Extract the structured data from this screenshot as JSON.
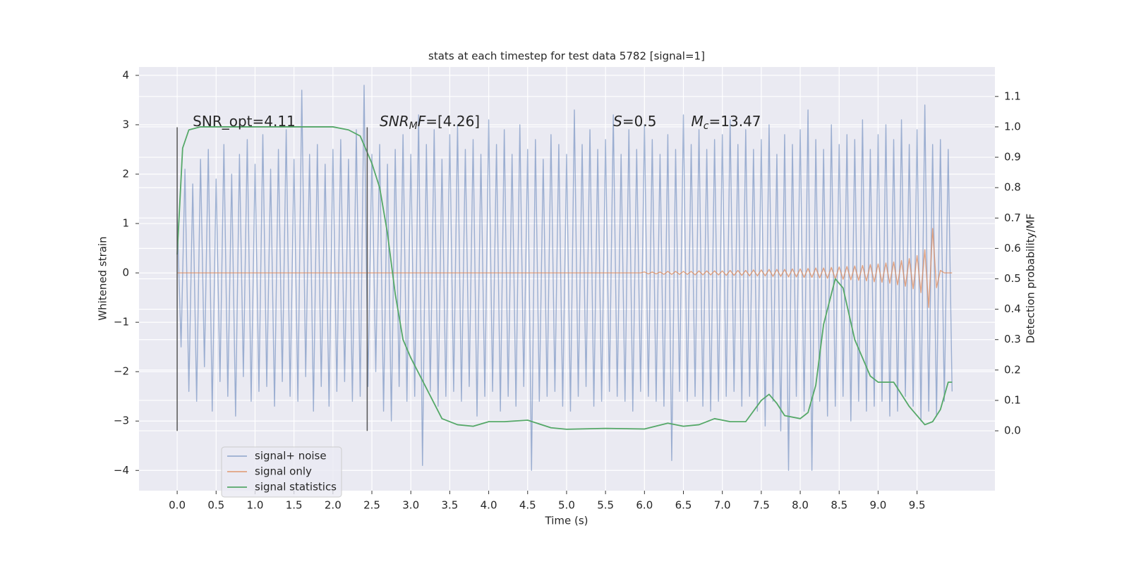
{
  "chart_data": {
    "type": "line",
    "title": "stats at each timestep for test data 5782 [signal=1]",
    "xlabel": "Time (s)",
    "ylabel": "Whitened strain",
    "y2label": "Detection probability/MF",
    "xlim": [
      -0.49,
      10.5
    ],
    "ylim": [
      -4.41,
      4.17
    ],
    "y2lim": [
      -0.197,
      1.197
    ],
    "xticks": [
      {
        "value": 0,
        "label": "0.0"
      },
      0.5,
      {
        "value": 1,
        "label": "1.0"
      },
      1.5,
      {
        "value": 2,
        "label": "2.0"
      },
      2.5,
      {
        "value": 3,
        "label": "3.0"
      },
      3.5,
      {
        "value": 4,
        "label": "4.0"
      },
      4.5,
      {
        "value": 5,
        "label": "5.0"
      },
      5.5,
      {
        "value": 6,
        "label": "6.0"
      },
      6.5,
      {
        "value": 7,
        "label": "7.0"
      },
      7.5,
      {
        "value": 8,
        "label": "8.0"
      },
      8.5,
      {
        "value": 9,
        "label": "9.0"
      },
      9.5
    ],
    "yticks": [
      {
        "value": -4,
        "label": "−4"
      },
      {
        "value": -3,
        "label": "−3"
      },
      {
        "value": -2,
        "label": "−2"
      },
      {
        "value": -1,
        "label": "−1"
      },
      0,
      1,
      2,
      3,
      4
    ],
    "y2ticks": [
      {
        "value": 0,
        "label": "0.0"
      },
      0.1,
      0.2,
      0.3,
      0.4,
      0.5,
      0.6,
      0.7,
      0.8,
      0.9,
      {
        "value": 1,
        "label": "1.0"
      },
      1.1
    ],
    "grid": true,
    "legend": "lower left",
    "vlines": {
      "x": [
        0,
        2.44
      ],
      "ymin": -3.2,
      "ymax": 2.95,
      "color": "#555555"
    },
    "annotations": [
      {
        "x": 0.2,
        "y": 3.0,
        "parts": [
          {
            "text": "SNR_opt=4.11"
          }
        ]
      },
      {
        "x": 2.6,
        "y": 3.0,
        "parts": [
          {
            "text": "SNR",
            "italic": true
          },
          {
            "text": "M",
            "italic": true,
            "sub": true
          },
          {
            "text": "F",
            "italic": true
          },
          {
            "text": "=[4.26]"
          }
        ]
      },
      {
        "x": 5.6,
        "y": 3.0,
        "parts": [
          {
            "text": "S",
            "italic": true
          },
          {
            "text": "=0.5"
          }
        ]
      },
      {
        "x": 6.6,
        "y": 3.0,
        "parts": [
          {
            "text": "M",
            "italic": true
          },
          {
            "text": "c",
            "italic": true,
            "sub": true
          },
          {
            "text": "=13.47"
          }
        ]
      }
    ],
    "series": [
      {
        "name": "signal+ noise",
        "color": "#4c72b0",
        "alpha": 0.5,
        "x": [
          0,
          0.05,
          0.1,
          0.15,
          0.2,
          0.25,
          0.3,
          0.35,
          0.4,
          0.45,
          0.5,
          0.55,
          0.6,
          0.65,
          0.7,
          0.75,
          0.8,
          0.85,
          0.9,
          0.95,
          1,
          1.05,
          1.1,
          1.15,
          1.2,
          1.25,
          1.3,
          1.35,
          1.4,
          1.45,
          1.5,
          1.55,
          1.6,
          1.65,
          1.7,
          1.75,
          1.8,
          1.85,
          1.9,
          1.95,
          2,
          2.05,
          2.1,
          2.15,
          2.2,
          2.25,
          2.3,
          2.35,
          2.4,
          2.45,
          2.5,
          2.55,
          2.6,
          2.65,
          2.7,
          2.75,
          2.8,
          2.85,
          2.9,
          2.95,
          3,
          3.05,
          3.1,
          3.15,
          3.2,
          3.25,
          3.3,
          3.35,
          3.4,
          3.45,
          3.5,
          3.55,
          3.6,
          3.65,
          3.7,
          3.75,
          3.8,
          3.85,
          3.9,
          3.95,
          4,
          4.05,
          4.1,
          4.15,
          4.2,
          4.25,
          4.3,
          4.35,
          4.4,
          4.45,
          4.5,
          4.55,
          4.6,
          4.65,
          4.7,
          4.75,
          4.8,
          4.85,
          4.9,
          4.95,
          5,
          5.05,
          5.1,
          5.15,
          5.2,
          5.25,
          5.3,
          5.35,
          5.4,
          5.45,
          5.5,
          5.55,
          5.6,
          5.65,
          5.7,
          5.75,
          5.8,
          5.85,
          5.9,
          5.95,
          6,
          6.05,
          6.1,
          6.15,
          6.2,
          6.25,
          6.3,
          6.35,
          6.4,
          6.45,
          6.5,
          6.55,
          6.6,
          6.65,
          6.7,
          6.75,
          6.8,
          6.85,
          6.9,
          6.95,
          7,
          7.05,
          7.1,
          7.15,
          7.2,
          7.25,
          7.3,
          7.35,
          7.4,
          7.45,
          7.5,
          7.55,
          7.6,
          7.65,
          7.7,
          7.75,
          7.8,
          7.85,
          7.9,
          7.95,
          8,
          8.05,
          8.1,
          8.15,
          8.2,
          8.25,
          8.3,
          8.35,
          8.4,
          8.45,
          8.5,
          8.55,
          8.6,
          8.65,
          8.7,
          8.75,
          8.8,
          8.85,
          8.9,
          8.95,
          9,
          9.05,
          9.1,
          9.15,
          9.2,
          9.25,
          9.3,
          9.35,
          9.4,
          9.45,
          9.5,
          9.55,
          9.6,
          9.65,
          9.7,
          9.75,
          9.8,
          9.85,
          9.9,
          9.95
        ],
        "values": [
          1.2,
          -1.5,
          2.1,
          -2.4,
          1.8,
          -2.6,
          2.3,
          -1.9,
          2.5,
          -2.8,
          1.9,
          -2.2,
          2.6,
          -2.5,
          2.0,
          -2.9,
          2.4,
          -2.1,
          2.7,
          -2.6,
          2.2,
          -2.4,
          2.8,
          -2.3,
          2.1,
          -2.7,
          2.5,
          -2.2,
          2.9,
          -2.5,
          2.3,
          -2.6,
          3.7,
          -2.1,
          2.4,
          -2.8,
          2.6,
          -2.3,
          2.2,
          -2.7,
          2.5,
          -2.4,
          2.7,
          -2.2,
          2.3,
          -2.6,
          2.9,
          -2.5,
          3.8,
          -2.3,
          2.4,
          -2.0,
          2.6,
          -2.8,
          2.2,
          -3.0,
          2.5,
          -2.3,
          2.8,
          -2.6,
          2.4,
          -2.5,
          3.2,
          -3.9,
          2.6,
          -2.4,
          2.9,
          -2.7,
          2.3,
          -2.5,
          2.8,
          -2.4,
          3.0,
          -2.6,
          2.5,
          -2.3,
          2.7,
          -2.9,
          2.4,
          -2.5,
          3.1,
          -2.4,
          2.6,
          -2.8,
          2.9,
          -2.5,
          2.4,
          -2.7,
          3.0,
          -2.3,
          2.5,
          -4.0,
          2.7,
          -2.6,
          2.3,
          -2.5,
          2.8,
          -2.4,
          2.6,
          -2.7,
          2.4,
          -2.8,
          3.3,
          -2.5,
          2.6,
          -2.3,
          2.9,
          -2.7,
          2.5,
          -2.6,
          2.7,
          -2.4,
          3.2,
          -2.5,
          2.4,
          -2.6,
          2.9,
          -2.8,
          2.5,
          -2.4,
          3.0,
          -2.5,
          2.7,
          -2.6,
          2.4,
          -2.7,
          2.8,
          -3.8,
          2.5,
          -2.4,
          3.2,
          -2.6,
          2.6,
          -2.5,
          2.9,
          -2.7,
          2.5,
          -2.8,
          2.7,
          -2.6,
          2.8,
          -2.5,
          3.1,
          -2.4,
          2.6,
          -2.7,
          2.9,
          -2.5,
          2.5,
          -2.8,
          2.7,
          -3.1,
          3.0,
          -2.6,
          2.4,
          -3.2,
          2.8,
          -4.0,
          2.6,
          -2.5,
          2.9,
          -2.8,
          3.3,
          -4.0,
          2.7,
          -2.6,
          2.5,
          -2.9,
          3.0,
          -2.7,
          2.6,
          -2.5,
          2.8,
          -3.0,
          2.7,
          -2.6,
          3.1,
          -2.8,
          2.5,
          -2.7,
          2.8,
          -2.6,
          3.0,
          -2.9,
          2.7,
          -2.8,
          3.1,
          -2.5,
          2.6,
          -2.7,
          2.9,
          -3.0,
          3.4,
          -2.8,
          2.6,
          -2.9,
          2.7,
          -2.6,
          2.5,
          -2.4
        ]
      },
      {
        "name": "signal only",
        "color": "#dd8452",
        "alpha": 0.7,
        "x": [
          0,
          0.05,
          0.1,
          0.15,
          0.2,
          0.25,
          0.3,
          0.35,
          0.4,
          0.45,
          0.5,
          0.55,
          0.6,
          0.65,
          0.7,
          0.75,
          0.8,
          0.85,
          0.9,
          0.95,
          1,
          1.05,
          1.1,
          1.15,
          1.2,
          1.25,
          1.3,
          1.35,
          1.4,
          1.45,
          1.5,
          1.55,
          1.6,
          1.65,
          1.7,
          1.75,
          1.8,
          1.85,
          1.9,
          1.95,
          2,
          2.05,
          2.1,
          2.15,
          2.2,
          2.25,
          2.3,
          2.35,
          2.4,
          2.45,
          2.5,
          2.55,
          2.6,
          2.65,
          2.7,
          2.75,
          2.8,
          2.85,
          2.9,
          2.95,
          3,
          3.05,
          3.1,
          3.15,
          3.2,
          3.25,
          3.3,
          3.35,
          3.4,
          3.45,
          3.5,
          3.55,
          3.6,
          3.65,
          3.7,
          3.75,
          3.8,
          3.85,
          3.9,
          3.95,
          4,
          4.05,
          4.1,
          4.15,
          4.2,
          4.25,
          4.3,
          4.35,
          4.4,
          4.45,
          4.5,
          4.55,
          4.6,
          4.65,
          4.7,
          4.75,
          4.8,
          4.85,
          4.9,
          4.95,
          5,
          5.05,
          5.1,
          5.15,
          5.2,
          5.25,
          5.3,
          5.35,
          5.4,
          5.45,
          5.5,
          5.55,
          5.6,
          5.65,
          5.7,
          5.75,
          5.8,
          5.85,
          5.9,
          5.95,
          6,
          6.05,
          6.1,
          6.15,
          6.2,
          6.25,
          6.3,
          6.35,
          6.4,
          6.45,
          6.5,
          6.55,
          6.6,
          6.65,
          6.7,
          6.75,
          6.8,
          6.85,
          6.9,
          6.95,
          7,
          7.05,
          7.1,
          7.15,
          7.2,
          7.25,
          7.3,
          7.35,
          7.4,
          7.45,
          7.5,
          7.55,
          7.6,
          7.65,
          7.7,
          7.75,
          7.8,
          7.85,
          7.9,
          7.95,
          8,
          8.05,
          8.1,
          8.15,
          8.2,
          8.25,
          8.3,
          8.35,
          8.4,
          8.45,
          8.5,
          8.55,
          8.6,
          8.65,
          8.7,
          8.75,
          8.8,
          8.85,
          8.9,
          8.95,
          9,
          9.05,
          9.1,
          9.15,
          9.2,
          9.25,
          9.3,
          9.35,
          9.4,
          9.45,
          9.5,
          9.55,
          9.6,
          9.65,
          9.7,
          9.75,
          9.8,
          9.85,
          9.9,
          9.95
        ],
        "values": [
          0,
          0,
          0,
          0,
          0,
          0,
          0,
          0,
          0,
          0,
          0,
          0,
          0,
          0,
          0,
          0,
          0,
          0,
          0,
          0,
          0,
          0,
          0,
          0,
          0,
          0,
          0,
          0,
          0,
          0,
          0,
          0,
          0,
          0,
          0,
          0,
          0,
          0,
          0,
          0,
          0,
          0,
          0,
          0,
          0,
          0,
          0,
          0,
          0,
          0,
          0,
          0,
          0,
          0,
          0,
          0,
          0,
          0,
          0,
          0,
          0,
          0,
          0,
          0,
          0,
          0,
          0,
          0,
          0,
          0,
          0,
          0,
          0,
          0,
          0,
          0,
          0,
          0,
          0,
          0,
          0,
          0,
          0,
          0,
          0,
          0,
          0,
          0,
          0,
          0,
          0,
          0,
          0,
          0,
          0,
          0,
          0,
          0,
          0,
          0,
          0,
          0,
          0,
          0,
          0,
          0,
          0,
          0,
          0,
          0,
          0,
          0,
          0,
          0,
          0,
          0,
          0,
          0,
          0,
          0,
          0.02,
          -0.02,
          0.02,
          -0.02,
          0.02,
          -0.03,
          0.03,
          -0.03,
          0.03,
          -0.03,
          0.03,
          -0.03,
          0.03,
          -0.04,
          0.04,
          -0.04,
          0.04,
          -0.04,
          0.04,
          -0.04,
          0.04,
          -0.05,
          0.05,
          -0.05,
          0.05,
          -0.05,
          0.05,
          -0.06,
          0.06,
          -0.06,
          0.06,
          -0.06,
          0.07,
          -0.07,
          0.07,
          -0.07,
          0.07,
          -0.08,
          0.08,
          -0.08,
          0.08,
          -0.09,
          0.09,
          -0.09,
          0.1,
          -0.1,
          0.1,
          -0.11,
          0.11,
          -0.12,
          0.12,
          -0.13,
          0.13,
          -0.14,
          0.14,
          -0.15,
          0.15,
          -0.16,
          0.17,
          -0.18,
          0.18,
          -0.19,
          0.2,
          -0.21,
          0.22,
          -0.24,
          0.25,
          -0.27,
          0.29,
          -0.32,
          0.35,
          -0.4,
          0.47,
          -0.7,
          0.9,
          -0.3,
          0.05,
          0,
          0,
          0
        ]
      },
      {
        "name": "signal statistics",
        "color": "#55a868",
        "alpha": 1,
        "axis": "y2",
        "x": [
          0,
          0.07,
          0.15,
          0.3,
          1,
          2,
          2.2,
          2.35,
          2.5,
          2.6,
          2.7,
          2.8,
          2.9,
          3,
          3.2,
          3.4,
          3.6,
          3.8,
          4,
          4.2,
          4.5,
          4.8,
          5,
          5.5,
          6,
          6.3,
          6.5,
          6.7,
          6.9,
          7.1,
          7.3,
          7.5,
          7.6,
          7.7,
          7.8,
          8,
          8.1,
          8.2,
          8.3,
          8.45,
          8.55,
          8.7,
          8.9,
          9,
          9.2,
          9.4,
          9.6,
          9.7,
          9.8,
          9.9,
          9.95
        ],
        "values": [
          0.58,
          0.93,
          0.99,
          1.0,
          1.0,
          1.0,
          0.99,
          0.97,
          0.88,
          0.8,
          0.65,
          0.45,
          0.3,
          0.24,
          0.14,
          0.04,
          0.02,
          0.015,
          0.03,
          0.03,
          0.035,
          0.01,
          0.005,
          0.008,
          0.006,
          0.025,
          0.015,
          0.02,
          0.04,
          0.03,
          0.03,
          0.1,
          0.12,
          0.09,
          0.05,
          0.04,
          0.06,
          0.15,
          0.35,
          0.5,
          0.47,
          0.3,
          0.18,
          0.16,
          0.16,
          0.08,
          0.02,
          0.03,
          0.07,
          0.16,
          0.16
        ]
      }
    ]
  }
}
